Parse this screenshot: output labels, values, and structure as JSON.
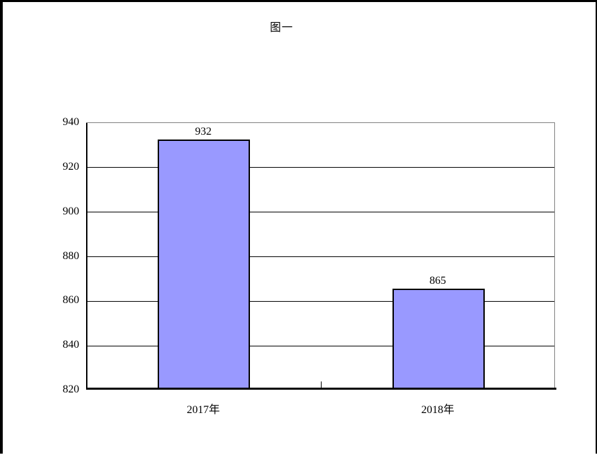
{
  "page": {
    "background_color": "#FFFFFF",
    "frame_border_color": "#000000"
  },
  "chart_data": {
    "type": "bar",
    "title": "图一",
    "categories": [
      "2017年",
      "2018年"
    ],
    "values": [
      932,
      865
    ],
    "data_labels": [
      "932",
      "865"
    ],
    "xlabel": "",
    "ylabel": "",
    "ylim": [
      820,
      940
    ],
    "yticks": [
      940,
      920,
      900,
      880,
      860,
      840,
      820
    ],
    "grid": true,
    "legend": false,
    "bar_fill_color": "#9999FF",
    "bar_border_color": "#000000",
    "gridline_color": "#000000",
    "plot_border_color": "#808080",
    "axis_color": "#000000"
  }
}
